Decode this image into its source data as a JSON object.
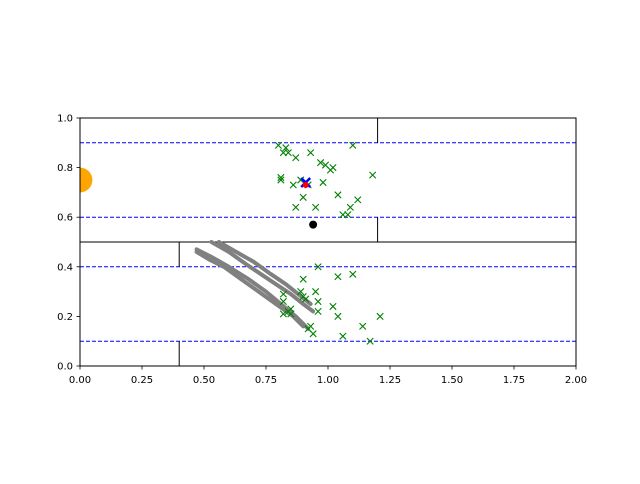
{
  "chart_data": {
    "type": "scatter",
    "title": "",
    "xlabel": "",
    "ylabel": "",
    "xlim": [
      0,
      2
    ],
    "ylim": [
      0,
      1
    ],
    "grid": false,
    "x_ticks": [
      "0.00",
      "0.25",
      "0.50",
      "0.75",
      "1.00",
      "1.25",
      "1.50",
      "1.75",
      "2.00"
    ],
    "y_ticks": [
      "0.0",
      "0.2",
      "0.4",
      "0.6",
      "0.8",
      "1.0"
    ],
    "colors": {
      "goal": "#ffa500",
      "scatter_x": "#008000",
      "lane": "#0000ff",
      "wall": "#000000",
      "trail": "#808080",
      "agent": "#0000ff",
      "target": "#ff0000",
      "dot": "#000000"
    },
    "lane_lines_y": [
      0.9,
      0.6,
      0.4,
      0.1
    ],
    "walls": [
      {
        "x": [
          0,
          2
        ],
        "y": [
          0.5,
          0.5
        ]
      },
      {
        "x": [
          1.2,
          1.2
        ],
        "y": [
          0.9,
          1.0
        ]
      },
      {
        "x": [
          1.2,
          1.2
        ],
        "y": [
          0.5,
          0.6
        ]
      },
      {
        "x": [
          0.4,
          0.4
        ],
        "y": [
          0.4,
          0.5
        ]
      },
      {
        "x": [
          0.4,
          0.4
        ],
        "y": [
          0.0,
          0.1
        ]
      }
    ],
    "goal": {
      "x": 0.0,
      "y": 0.75,
      "r": 0.05
    },
    "x_markers": [
      [
        0.8,
        0.89
      ],
      [
        0.83,
        0.88
      ],
      [
        0.82,
        0.86
      ],
      [
        0.84,
        0.86
      ],
      [
        0.87,
        0.84
      ],
      [
        0.93,
        0.86
      ],
      [
        0.97,
        0.82
      ],
      [
        0.99,
        0.81
      ],
      [
        1.01,
        0.79
      ],
      [
        1.1,
        0.89
      ],
      [
        0.81,
        0.76
      ],
      [
        0.81,
        0.75
      ],
      [
        0.86,
        0.73
      ],
      [
        0.89,
        0.75
      ],
      [
        0.92,
        0.73
      ],
      [
        0.98,
        0.74
      ],
      [
        1.02,
        0.8
      ],
      [
        1.18,
        0.77
      ],
      [
        1.04,
        0.69
      ],
      [
        0.9,
        0.68
      ],
      [
        0.87,
        0.64
      ],
      [
        0.95,
        0.64
      ],
      [
        1.06,
        0.61
      ],
      [
        1.08,
        0.61
      ],
      [
        1.09,
        0.64
      ],
      [
        1.12,
        0.67
      ],
      [
        0.82,
        0.29
      ],
      [
        0.82,
        0.26
      ],
      [
        0.85,
        0.23
      ],
      [
        0.84,
        0.22
      ],
      [
        0.82,
        0.21
      ],
      [
        0.85,
        0.21
      ],
      [
        0.9,
        0.35
      ],
      [
        0.96,
        0.4
      ],
      [
        0.89,
        0.3
      ],
      [
        0.9,
        0.28
      ],
      [
        0.91,
        0.27
      ],
      [
        0.95,
        0.3
      ],
      [
        0.96,
        0.26
      ],
      [
        0.96,
        0.22
      ],
      [
        1.04,
        0.36
      ],
      [
        1.1,
        0.37
      ],
      [
        1.02,
        0.24
      ],
      [
        1.04,
        0.2
      ],
      [
        1.21,
        0.2
      ],
      [
        0.93,
        0.16
      ],
      [
        0.92,
        0.15
      ],
      [
        0.94,
        0.13
      ],
      [
        1.06,
        0.12
      ],
      [
        1.14,
        0.16
      ],
      [
        1.17,
        0.1
      ]
    ],
    "trails": [
      [
        [
          0.47,
          0.46
        ],
        [
          0.52,
          0.43
        ],
        [
          0.58,
          0.4
        ],
        [
          0.65,
          0.35
        ],
        [
          0.72,
          0.3
        ],
        [
          0.79,
          0.25
        ],
        [
          0.86,
          0.2
        ],
        [
          0.9,
          0.16
        ]
      ],
      [
        [
          0.47,
          0.47
        ],
        [
          0.53,
          0.44
        ],
        [
          0.6,
          0.4
        ],
        [
          0.68,
          0.35
        ],
        [
          0.75,
          0.3
        ],
        [
          0.81,
          0.25
        ],
        [
          0.87,
          0.2
        ],
        [
          0.92,
          0.15
        ]
      ],
      [
        [
          0.53,
          0.5
        ],
        [
          0.6,
          0.46
        ],
        [
          0.67,
          0.41
        ],
        [
          0.73,
          0.37
        ],
        [
          0.79,
          0.33
        ],
        [
          0.85,
          0.29
        ],
        [
          0.9,
          0.25
        ],
        [
          0.94,
          0.22
        ]
      ],
      [
        [
          0.56,
          0.5
        ],
        [
          0.63,
          0.46
        ],
        [
          0.7,
          0.42
        ],
        [
          0.77,
          0.37
        ],
        [
          0.83,
          0.33
        ],
        [
          0.88,
          0.29
        ],
        [
          0.93,
          0.25
        ]
      ]
    ],
    "agent": {
      "x": 0.91,
      "y": 0.74
    },
    "target": {
      "x": 0.91,
      "y": 0.73
    },
    "dot": {
      "x": 0.94,
      "y": 0.57
    }
  }
}
